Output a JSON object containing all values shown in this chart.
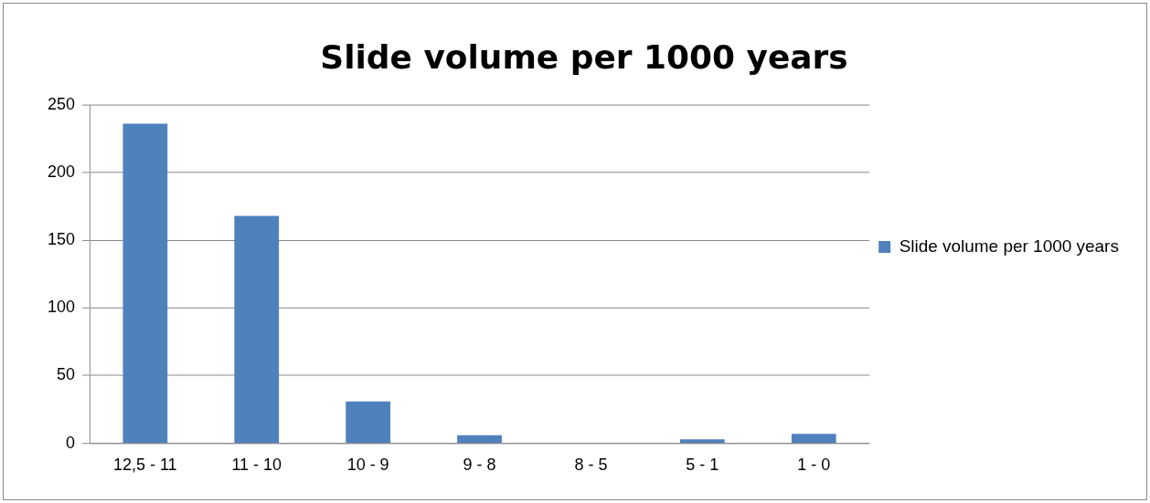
{
  "chart_data": {
    "type": "bar",
    "title": "Slide volume per 1000 years",
    "categories": [
      "12,5 - 11",
      "11 - 10",
      "10 - 9",
      "9 - 8",
      "8 - 5",
      "5 - 1",
      "1 - 0"
    ],
    "series": [
      {
        "name": "Slide volume per 1000 years",
        "color": "#4f81bd",
        "values": [
          236,
          168,
          31,
          6,
          0,
          3,
          7
        ]
      }
    ],
    "ylim": [
      0,
      250
    ],
    "yticks": [
      0,
      50,
      100,
      150,
      200,
      250
    ],
    "grid": "y",
    "legend": "right"
  }
}
